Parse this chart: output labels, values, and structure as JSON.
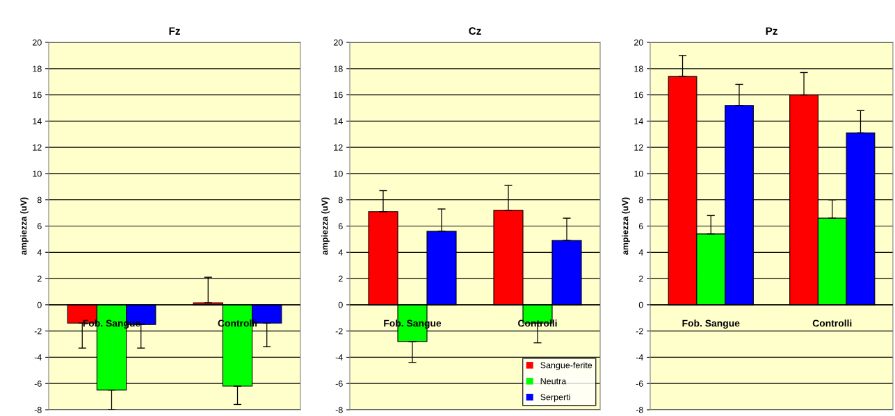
{
  "chart_data": [
    {
      "type": "bar",
      "title": "Fz",
      "ylabel": "ampiezza (uV)",
      "categories": [
        "Fob. Sangue",
        "Controlli"
      ],
      "ylim": [
        -8,
        20
      ],
      "yticks": [
        -8,
        -6,
        -4,
        -2,
        0,
        2,
        4,
        6,
        8,
        10,
        12,
        14,
        16,
        18,
        20
      ],
      "grid": "y",
      "legend": false,
      "series": [
        {
          "color": "#ff0000",
          "values": [
            -1.4,
            0.15
          ],
          "errors": [
            [
              -3.3,
              -1.4
            ],
            [
              0.15,
              2.1
            ]
          ]
        },
        {
          "color": "#00ff00",
          "values": [
            -6.5,
            -6.2
          ],
          "errors": [
            [
              -8,
              -6.5
            ],
            [
              -7.6,
              -6.2
            ]
          ]
        },
        {
          "color": "#0000ff",
          "values": [
            -1.5,
            -1.4
          ],
          "errors": [
            [
              -3.3,
              -1.5
            ],
            [
              -3.2,
              -1.4
            ]
          ]
        }
      ]
    },
    {
      "type": "bar",
      "title": "Cz",
      "ylabel": "ampiezza (uV)",
      "categories": [
        "Fob. Sangue",
        "Controlli"
      ],
      "ylim": [
        -8,
        20
      ],
      "yticks": [
        -8,
        -6,
        -4,
        -2,
        0,
        2,
        4,
        6,
        8,
        10,
        12,
        14,
        16,
        18,
        20
      ],
      "grid": "y",
      "legend": "bottom right",
      "series": [
        {
          "name": "Sangue-ferite",
          "color": "#ff0000",
          "values": [
            7.1,
            7.2
          ],
          "errors": [
            [
              7.1,
              8.7
            ],
            [
              7.2,
              9.1
            ]
          ]
        },
        {
          "name": "Neutra",
          "color": "#00ff00",
          "values": [
            -2.8,
            -1.4
          ],
          "errors": [
            [
              -4.4,
              -2.8
            ],
            [
              -2.9,
              -1.4
            ]
          ]
        },
        {
          "name": "Serperti",
          "color": "#0000ff",
          "values": [
            5.6,
            4.9
          ],
          "errors": [
            [
              5.6,
              7.3
            ],
            [
              4.9,
              6.6
            ]
          ]
        }
      ]
    },
    {
      "type": "bar",
      "title": "Pz",
      "ylabel": "ampiezza (uV)",
      "categories": [
        "Fob. Sangue",
        "Controlli"
      ],
      "ylim": [
        -8,
        20
      ],
      "yticks": [
        -8,
        -6,
        -4,
        -2,
        0,
        2,
        4,
        6,
        8,
        10,
        12,
        14,
        16,
        18,
        20
      ],
      "grid": "y",
      "legend": false,
      "series": [
        {
          "color": "#ff0000",
          "values": [
            17.4,
            16.0
          ],
          "errors": [
            [
              17.4,
              19.0
            ],
            [
              16.0,
              17.7
            ]
          ]
        },
        {
          "color": "#00ff00",
          "values": [
            5.4,
            6.6
          ],
          "errors": [
            [
              5.4,
              6.8
            ],
            [
              6.6,
              8.0
            ]
          ]
        },
        {
          "color": "#0000ff",
          "values": [
            15.2,
            13.1
          ],
          "errors": [
            [
              15.2,
              16.8
            ],
            [
              13.1,
              14.8
            ]
          ]
        }
      ]
    }
  ]
}
